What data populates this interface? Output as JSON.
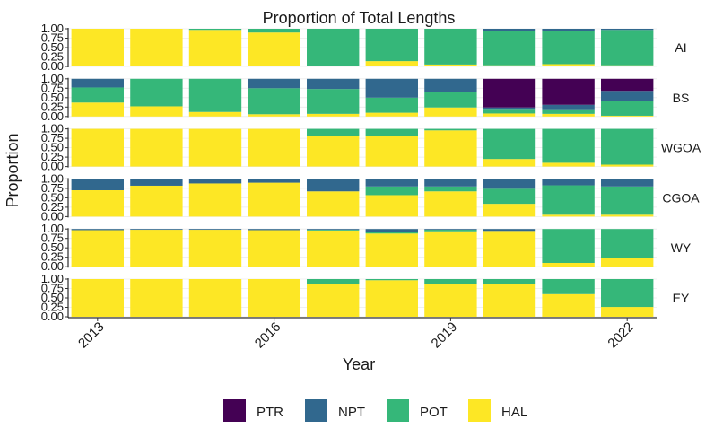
{
  "chart_data": {
    "type": "bar",
    "stacked": true,
    "title": "Proportion of Total Lengths",
    "xlabel": "Year",
    "ylabel": "Proportion",
    "x": [
      2013,
      2014,
      2015,
      2016,
      2017,
      2018,
      2019,
      2020,
      2021,
      2022
    ],
    "x_ticks": [
      "2013",
      "2016",
      "2019",
      "2022"
    ],
    "y_ticks": [
      "0.00",
      "0.25",
      "0.50",
      "0.75",
      "1.00"
    ],
    "ylim": [
      0,
      1
    ],
    "legend_position": "bottom",
    "stack_order": [
      "HAL",
      "POT",
      "NPT",
      "PTR"
    ],
    "legend": [
      {
        "name": "PTR",
        "color": "#440154"
      },
      {
        "name": "NPT",
        "color": "#31688e"
      },
      {
        "name": "POT",
        "color": "#35b779"
      },
      {
        "name": "HAL",
        "color": "#fde725"
      }
    ],
    "panels": [
      {
        "label": "AI",
        "values": {
          "HAL": [
            1.0,
            1.0,
            0.97,
            0.9,
            0.02,
            0.14,
            0.05,
            0.03,
            0.06,
            0.03
          ],
          "POT": [
            0.0,
            0.0,
            0.03,
            0.1,
            0.98,
            0.86,
            0.95,
            0.9,
            0.88,
            0.94
          ],
          "NPT": [
            0.0,
            0.0,
            0.0,
            0.0,
            0.0,
            0.0,
            0.0,
            0.07,
            0.06,
            0.03
          ],
          "PTR": [
            0,
            0,
            0,
            0,
            0,
            0,
            0,
            0,
            0,
            0
          ]
        }
      },
      {
        "label": "BS",
        "values": {
          "HAL": [
            0.37,
            0.27,
            0.12,
            0.06,
            0.07,
            0.1,
            0.24,
            0.08,
            0.07,
            0.02
          ],
          "POT": [
            0.4,
            0.73,
            0.88,
            0.69,
            0.66,
            0.4,
            0.4,
            0.1,
            0.1,
            0.4
          ],
          "NPT": [
            0.23,
            0.0,
            0.0,
            0.25,
            0.27,
            0.5,
            0.36,
            0.06,
            0.14,
            0.26
          ],
          "PTR": [
            0,
            0,
            0,
            0,
            0,
            0,
            0,
            0.76,
            0.69,
            0.32
          ]
        }
      },
      {
        "label": "WGOA",
        "values": {
          "HAL": [
            1.0,
            1.0,
            1.0,
            1.0,
            0.82,
            0.82,
            0.96,
            0.2,
            0.1,
            0.05
          ],
          "POT": [
            0.0,
            0.0,
            0.0,
            0.0,
            0.18,
            0.18,
            0.04,
            0.8,
            0.9,
            0.95
          ],
          "NPT": [
            0,
            0,
            0,
            0,
            0,
            0,
            0,
            0,
            0,
            0
          ],
          "PTR": [
            0,
            0,
            0,
            0,
            0,
            0,
            0,
            0,
            0,
            0
          ]
        }
      },
      {
        "label": "CGOA",
        "values": {
          "HAL": [
            0.7,
            0.82,
            0.88,
            0.9,
            0.67,
            0.57,
            0.67,
            0.34,
            0.05,
            0.05
          ],
          "POT": [
            0.0,
            0.0,
            0.0,
            0.0,
            0.0,
            0.23,
            0.13,
            0.4,
            0.78,
            0.75
          ],
          "NPT": [
            0.3,
            0.18,
            0.12,
            0.1,
            0.33,
            0.2,
            0.2,
            0.26,
            0.17,
            0.2
          ],
          "PTR": [
            0,
            0,
            0,
            0,
            0,
            0,
            0,
            0,
            0,
            0
          ]
        }
      },
      {
        "label": "WY",
        "values": {
          "HAL": [
            0.97,
            0.98,
            0.98,
            0.97,
            0.96,
            0.88,
            0.94,
            0.95,
            0.1,
            0.22
          ],
          "POT": [
            0.0,
            0.0,
            0.0,
            0.0,
            0.02,
            0.05,
            0.04,
            0.0,
            0.9,
            0.78
          ],
          "NPT": [
            0.03,
            0.02,
            0.02,
            0.03,
            0.02,
            0.07,
            0.02,
            0.05,
            0.0,
            0.0
          ],
          "PTR": [
            0,
            0,
            0,
            0,
            0,
            0,
            0,
            0,
            0,
            0
          ]
        }
      },
      {
        "label": "EY",
        "values": {
          "HAL": [
            1.0,
            1.0,
            1.0,
            1.0,
            0.88,
            0.97,
            0.88,
            0.86,
            0.6,
            0.26
          ],
          "POT": [
            0.0,
            0.0,
            0.0,
            0.0,
            0.12,
            0.03,
            0.12,
            0.14,
            0.4,
            0.74
          ],
          "NPT": [
            0,
            0,
            0,
            0,
            0,
            0,
            0,
            0,
            0,
            0
          ],
          "PTR": [
            0,
            0,
            0,
            0,
            0,
            0,
            0,
            0,
            0,
            0
          ]
        }
      }
    ]
  }
}
